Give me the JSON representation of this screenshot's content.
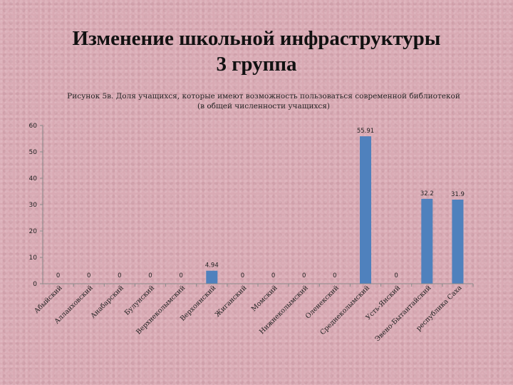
{
  "header": {
    "title_line1": "Изменение школьной инфраструктуры",
    "title_line2": "3 группа",
    "subtitle_line1": "Рисунок 5в. Доля учащихся, которые имеют возможность пользоваться современной библиотекой",
    "subtitle_line2": "(в общей численности учащихся)"
  },
  "colors": {
    "bar": "#4f81bd",
    "axis": "#8a8a8a",
    "text": "#222222"
  },
  "chart_data": {
    "type": "bar",
    "categories": [
      "Абыйский",
      "Аллаиховский",
      "Анабарский",
      "Булунский",
      "Верхнеколымский",
      "Верхоянский",
      "Жиганский",
      "Момский",
      "Нижнеколымский",
      "Оленекский",
      "Среднеколымский",
      "Усть-Янский",
      "Эвено-Бытантайский",
      "республика Саха"
    ],
    "series": [
      {
        "values": [
          0,
          0,
          0,
          0,
          0,
          4.94,
          0,
          0,
          0,
          0,
          55.91,
          0,
          32.2,
          31.9
        ]
      }
    ],
    "data_labels": [
      "0",
      "0",
      "0",
      "0",
      "0",
      "4.94",
      "0",
      "0",
      "0",
      "0",
      "55.91",
      "0",
      "32.2",
      "31.9"
    ],
    "yticks": [
      "0",
      "10",
      "20",
      "30",
      "40",
      "50",
      "60"
    ],
    "ylim": [
      0,
      60
    ],
    "grid": false,
    "legend": "none"
  }
}
